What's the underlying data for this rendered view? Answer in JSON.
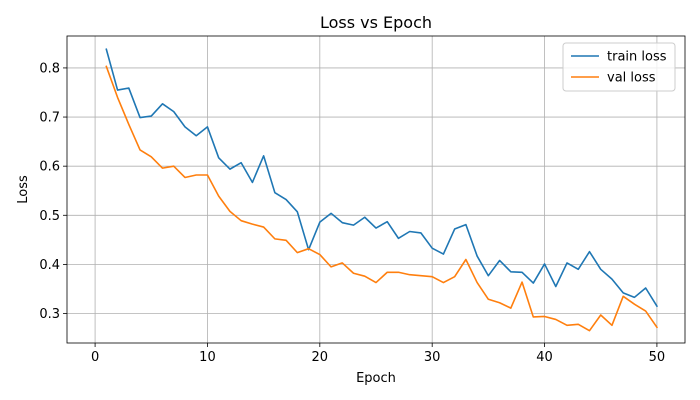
{
  "chart_data": {
    "type": "line",
    "title": "Loss vs Epoch",
    "xlabel": "Epoch",
    "ylabel": "Loss",
    "xlim": [
      -2.5,
      52.5
    ],
    "ylim": [
      0.24,
      0.865
    ],
    "xticks": [
      0,
      10,
      20,
      30,
      40,
      50
    ],
    "yticks": [
      0.3,
      0.4,
      0.5,
      0.6,
      0.7,
      0.8
    ],
    "grid": true,
    "legend_position": "top-right",
    "x": [
      1,
      2,
      3,
      4,
      5,
      6,
      7,
      8,
      9,
      10,
      11,
      12,
      13,
      14,
      15,
      16,
      17,
      18,
      19,
      20,
      21,
      22,
      23,
      24,
      25,
      26,
      27,
      28,
      29,
      30,
      31,
      32,
      33,
      34,
      35,
      36,
      37,
      38,
      39,
      40,
      41,
      42,
      43,
      44,
      45,
      46,
      47,
      48,
      49,
      50
    ],
    "series": [
      {
        "name": "train loss",
        "color": "#1f77b4",
        "values": [
          0.838,
          0.755,
          0.759,
          0.699,
          0.702,
          0.727,
          0.711,
          0.68,
          0.662,
          0.68,
          0.617,
          0.594,
          0.607,
          0.567,
          0.621,
          0.546,
          0.532,
          0.507,
          0.43,
          0.486,
          0.504,
          0.485,
          0.48,
          0.496,
          0.474,
          0.487,
          0.453,
          0.467,
          0.464,
          0.433,
          0.421,
          0.472,
          0.481,
          0.417,
          0.377,
          0.408,
          0.385,
          0.384,
          0.362,
          0.401,
          0.355,
          0.403,
          0.39,
          0.426,
          0.39,
          0.37,
          0.342,
          0.333,
          0.352,
          0.315
        ]
      },
      {
        "name": "val loss",
        "color": "#ff7f0e",
        "values": [
          0.803,
          0.74,
          0.685,
          0.633,
          0.619,
          0.596,
          0.6,
          0.577,
          0.582,
          0.582,
          0.539,
          0.508,
          0.489,
          0.482,
          0.476,
          0.452,
          0.449,
          0.424,
          0.432,
          0.42,
          0.395,
          0.403,
          0.382,
          0.376,
          0.363,
          0.384,
          0.384,
          0.379,
          0.377,
          0.375,
          0.363,
          0.375,
          0.41,
          0.363,
          0.329,
          0.322,
          0.311,
          0.364,
          0.293,
          0.294,
          0.288,
          0.276,
          0.278,
          0.265,
          0.297,
          0.276,
          0.335,
          0.319,
          0.305,
          0.272
        ]
      }
    ]
  }
}
